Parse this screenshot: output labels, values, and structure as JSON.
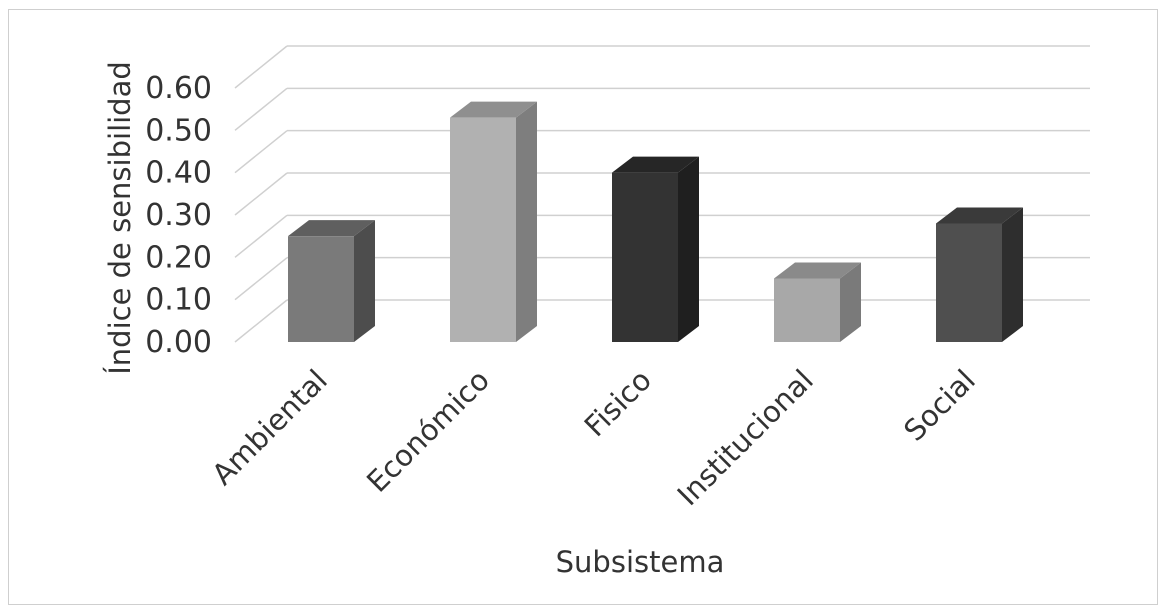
{
  "chart_data": {
    "type": "bar",
    "style": "3d-column",
    "title": "",
    "xlabel": "Subsistema",
    "ylabel": "Índice de sensibilidad",
    "categories": [
      "Ambiental",
      "Económico",
      "Fisico",
      "Institucional",
      "Social"
    ],
    "values": [
      0.25,
      0.53,
      0.4,
      0.15,
      0.28
    ],
    "ylim": [
      0,
      0.6
    ],
    "yticks": [
      "0.00",
      "0.10",
      "0.20",
      "0.30",
      "0.40",
      "0.50",
      "0.60"
    ],
    "grid": true,
    "legend": "none",
    "bar_colors": {
      "front": [
        "#7a7a7a",
        "#b1b1b1",
        "#333333",
        "#a8a8a8",
        "#4f4f4f"
      ],
      "side": [
        "#4d4d4d",
        "#7e7e7e",
        "#1f1f1f",
        "#7a7a7a",
        "#2e2e2e"
      ],
      "top": [
        "#5f5f5f",
        "#8f8f8f",
        "#262626",
        "#8a8a8a",
        "#3a3a3a"
      ]
    },
    "gridline_color": "#d0d0d0"
  }
}
